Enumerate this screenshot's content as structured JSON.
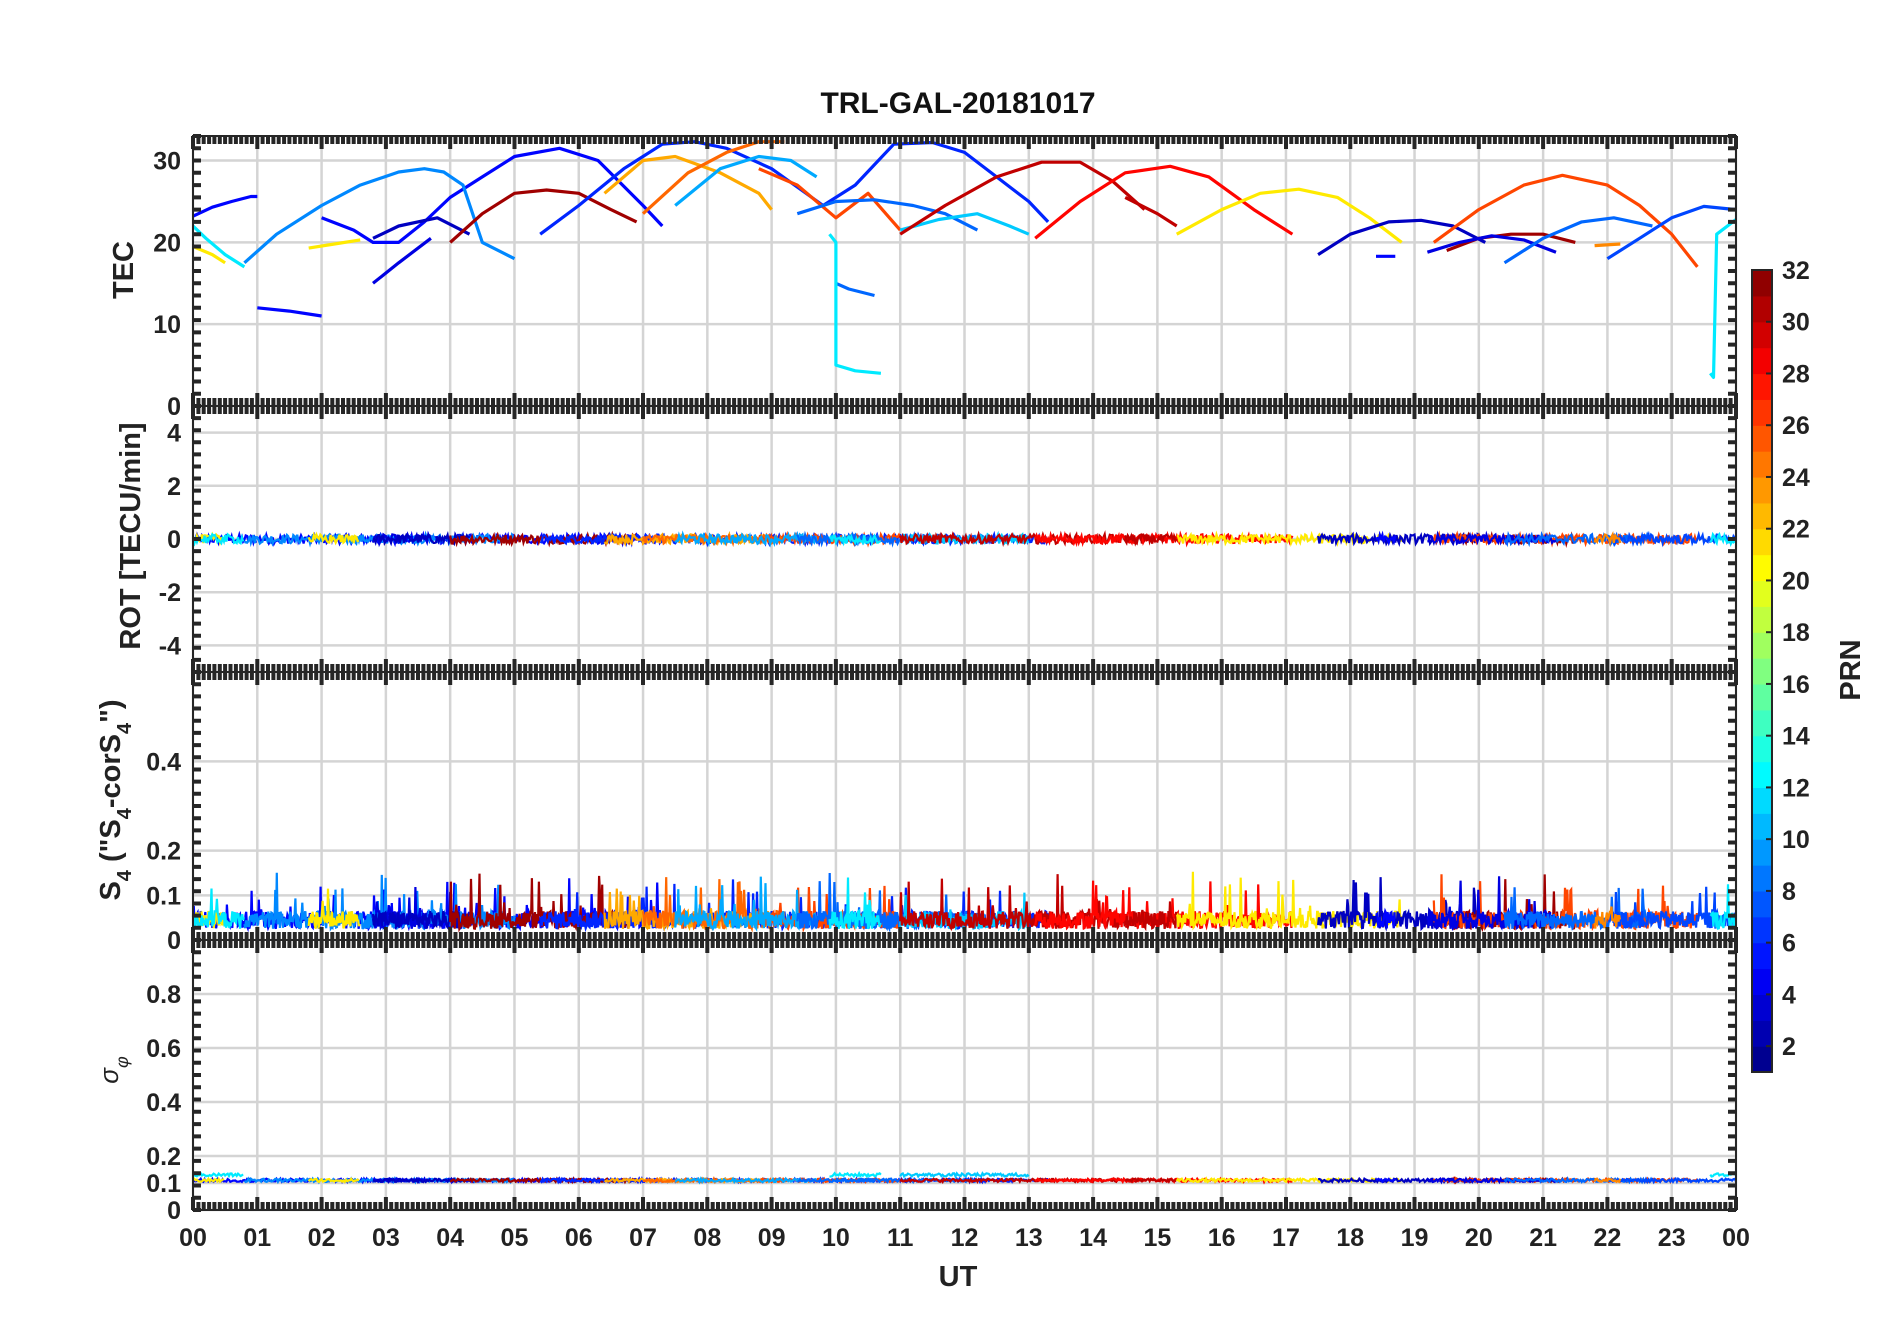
{
  "chart_data": {
    "type": "line",
    "title": "TRL-GAL-20181017",
    "xlabel": "UT",
    "x_ticks": [
      "00",
      "01",
      "02",
      "03",
      "04",
      "05",
      "06",
      "07",
      "08",
      "09",
      "10",
      "11",
      "12",
      "13",
      "14",
      "15",
      "16",
      "17",
      "18",
      "19",
      "20",
      "21",
      "22",
      "23",
      "00"
    ],
    "xlim": [
      0,
      24
    ],
    "colorbar": {
      "label": "PRN",
      "range": [
        1,
        32
      ],
      "ticks": [
        "2",
        "4",
        "6",
        "8",
        "10",
        "12",
        "14",
        "16",
        "18",
        "20",
        "22",
        "24",
        "26",
        "28",
        "30",
        "32"
      ],
      "colormap": "jet"
    },
    "panels": [
      {
        "name": "tec",
        "ylabel": "TEC",
        "ylim": [
          0,
          33
        ],
        "yticks": [
          0,
          10,
          20,
          30
        ],
        "series": [
          {
            "prn": 5,
            "x": [
              0.0,
              0.3,
              0.6,
              0.9,
              1.0
            ],
            "y": [
              23.2,
              24.3,
              25.0,
              25.6,
              25.6
            ]
          },
          {
            "prn": 5,
            "x": [
              1.0,
              1.5,
              2.0
            ],
            "y": [
              12.0,
              11.6,
              11.0
            ]
          },
          {
            "prn": 5,
            "x": [
              2.0,
              2.5,
              2.8,
              3.2,
              3.6,
              4.0,
              4.5,
              5.0,
              5.7,
              6.3,
              7.0,
              7.3
            ],
            "y": [
              23.0,
              21.5,
              20.0,
              20.0,
              22.5,
              25.5,
              28.0,
              30.5,
              31.5,
              30.0,
              24.5,
              22.0
            ]
          },
          {
            "prn": 9,
            "x": [
              0.8,
              1.3,
              2.0,
              2.6,
              3.2,
              3.6,
              3.9,
              4.2,
              4.5,
              5.0
            ],
            "y": [
              17.5,
              21.0,
              24.5,
              27.0,
              28.6,
              29.0,
              28.6,
              27.0,
              20.0,
              18.0
            ]
          },
          {
            "prn": 4,
            "x": [
              2.8,
              3.2,
              3.7
            ],
            "y": [
              15.0,
              17.5,
              20.5
            ]
          },
          {
            "prn": 3,
            "x": [
              2.8,
              3.2,
              3.8,
              4.3
            ],
            "y": [
              20.5,
              22.0,
              23.0,
              21.0
            ]
          },
          {
            "prn": 31,
            "x": [
              4.0,
              4.5,
              5.0,
              5.5,
              6.0,
              6.5,
              6.9
            ],
            "y": [
              20.0,
              23.5,
              26.0,
              26.4,
              26.0,
              24.0,
              22.5
            ]
          },
          {
            "prn": 6,
            "x": [
              5.4,
              6.0,
              6.7,
              7.3,
              7.8,
              8.3,
              9.0,
              9.8,
              10.3,
              10.9,
              11.5,
              12.0,
              12.5,
              13.0,
              13.3
            ],
            "y": [
              21.0,
              24.5,
              29.0,
              32.0,
              32.3,
              31.5,
              29.0,
              24.5,
              27.0,
              32.0,
              32.2,
              31.0,
              28.0,
              25.0,
              22.5
            ]
          },
          {
            "prn": 23,
            "x": [
              6.4,
              7.0,
              7.5,
              8.2,
              8.8,
              9.0
            ],
            "y": [
              26.0,
              30.0,
              30.5,
              28.5,
              26.0,
              24.0
            ]
          },
          {
            "prn": 25,
            "x": [
              7.0,
              7.7,
              8.3,
              8.8,
              9.2
            ],
            "y": [
              23.5,
              28.5,
              31.0,
              32.3,
              32.3
            ]
          },
          {
            "prn": 26,
            "x": [
              8.8,
              9.4,
              10.0,
              10.5,
              11.0
            ],
            "y": [
              29.0,
              27.0,
              23.0,
              26.0,
              21.5
            ]
          },
          {
            "prn": 10,
            "x": [
              7.5,
              8.2,
              8.8,
              9.3,
              9.7
            ],
            "y": [
              24.5,
              29.0,
              30.5,
              30.0,
              28.0
            ]
          },
          {
            "prn": 8,
            "x": [
              9.4,
              10.0,
              10.6,
              11.2,
              11.7,
              12.2
            ],
            "y": [
              23.5,
              25.0,
              25.2,
              24.5,
              23.5,
              21.5
            ]
          },
          {
            "prn": 11,
            "x": [
              11.0,
              11.6,
              12.2,
              12.7,
              13.0
            ],
            "y": [
              21.5,
              22.8,
              23.5,
              22.0,
              21.0
            ]
          },
          {
            "prn": 8,
            "x": [
              10.0,
              10.2,
              10.6
            ],
            "y": [
              15.0,
              14.3,
              13.5
            ]
          },
          {
            "prn": 12,
            "x": [
              9.9,
              10.0,
              10.0,
              10.3,
              10.7
            ],
            "y": [
              21.0,
              20.0,
              5.0,
              4.3,
              4.0
            ]
          },
          {
            "prn": 30,
            "x": [
              11.0,
              11.7,
              12.5,
              13.2,
              13.8,
              14.3,
              14.8
            ],
            "y": [
              21.0,
              24.5,
              28.0,
              29.8,
              29.8,
              27.5,
              24.0
            ]
          },
          {
            "prn": 28,
            "x": [
              13.1,
              13.8,
              14.5,
              15.2,
              15.8,
              16.5,
              17.1
            ],
            "y": [
              20.5,
              25.0,
              28.5,
              29.3,
              28.0,
              24.0,
              21.0
            ]
          },
          {
            "prn": 30,
            "x": [
              14.5,
              15.0,
              15.3
            ],
            "y": [
              25.5,
              23.5,
              22.0
            ]
          },
          {
            "prn": 21,
            "x": [
              15.3,
              16.0,
              16.6,
              17.2,
              17.8,
              18.3,
              18.8
            ],
            "y": [
              21.0,
              24.0,
              26.0,
              26.5,
              25.5,
              23.0,
              20.0
            ]
          },
          {
            "prn": 3,
            "x": [
              17.5,
              18.0,
              18.6,
              19.1,
              19.6,
              20.1
            ],
            "y": [
              18.5,
              21.0,
              22.5,
              22.7,
              22.0,
              20.0
            ]
          },
          {
            "prn": 5,
            "x": [
              18.4,
              18.7
            ],
            "y": [
              18.3,
              18.3
            ]
          },
          {
            "prn": 31,
            "x": [
              19.5,
              20.0,
              20.5,
              21.0,
              21.5
            ],
            "y": [
              19.0,
              20.5,
              21.0,
              21.0,
              20.0
            ]
          },
          {
            "prn": 26,
            "x": [
              19.3,
              20.0,
              20.7,
              21.3,
              22.0,
              22.5,
              23.0,
              23.4
            ],
            "y": [
              20.0,
              24.0,
              27.0,
              28.2,
              27.0,
              24.5,
              21.0,
              17.0
            ]
          },
          {
            "prn": 4,
            "x": [
              19.2,
              19.7,
              20.2,
              20.7,
              21.2
            ],
            "y": [
              18.8,
              20.0,
              20.8,
              20.3,
              18.8
            ]
          },
          {
            "prn": 8,
            "x": [
              20.4,
              21.0,
              21.6,
              22.1,
              22.7
            ],
            "y": [
              17.5,
              20.5,
              22.5,
              23.0,
              22.0
            ]
          },
          {
            "prn": 7,
            "x": [
              22.0,
              22.5,
              23.0,
              23.5,
              24.0
            ],
            "y": [
              18.0,
              20.5,
              23.0,
              24.4,
              24.0
            ]
          },
          {
            "prn": 24,
            "x": [
              21.8,
              22.2
            ],
            "y": [
              19.6,
              19.8
            ]
          },
          {
            "prn": 12,
            "x": [
              23.6,
              23.65,
              23.7,
              24.0
            ],
            "y": [
              4.0,
              3.5,
              21.0,
              22.8
            ]
          },
          {
            "prn": 21,
            "x": [
              0.0,
              0.3,
              0.5
            ],
            "y": [
              19.5,
              18.5,
              17.5
            ]
          },
          {
            "prn": 12,
            "x": [
              0.0,
              0.2,
              0.5,
              0.8
            ],
            "y": [
              22.0,
              20.5,
              18.5,
              17.0
            ]
          },
          {
            "prn": 21,
            "x": [
              1.8,
              2.2,
              2.6
            ],
            "y": [
              19.3,
              19.8,
              20.3
            ]
          }
        ]
      },
      {
        "name": "rot",
        "ylabel": "ROT [TECU/min]",
        "ylim": [
          -5,
          5
        ],
        "yticks": [
          -4,
          -2,
          0,
          2,
          4
        ],
        "note": "ROT stays near 0 TECU/min all day (within about ±0.3)"
      },
      {
        "name": "s4",
        "ylabel": "S4 (\"S4-corS4\")",
        "ylim": [
          0,
          0.6
        ],
        "yticks": [
          0,
          0.1,
          0.2,
          0.4
        ],
        "note": "S4 mostly 0.02–0.10 with spikes up to about 0.17"
      },
      {
        "name": "sigma_phi",
        "ylabel": "σφ",
        "ylim": [
          0,
          1
        ],
        "yticks": [
          0,
          0.1,
          0.2,
          0.4,
          0.6,
          0.8
        ],
        "note": "sigma phi stays near 0.11–0.14"
      }
    ]
  }
}
